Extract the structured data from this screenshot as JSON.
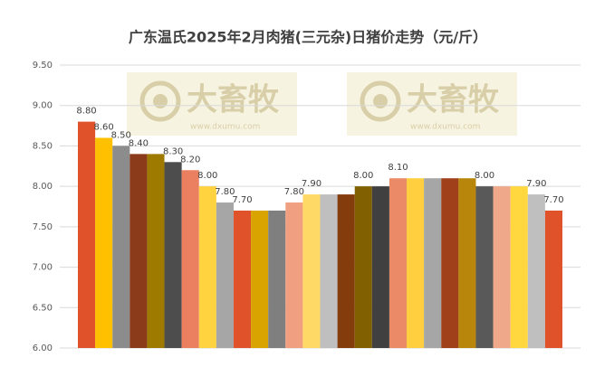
{
  "chart_data": {
    "type": "bar",
    "title": "广东温氏2025年2月肉猪(三元杂)日猪价走势（元/斤）",
    "values": [
      8.8,
      8.6,
      8.5,
      8.4,
      8.4,
      8.3,
      8.2,
      8.0,
      7.8,
      7.7,
      7.7,
      7.7,
      7.8,
      7.9,
      7.9,
      7.9,
      8.0,
      8.0,
      8.1,
      8.1,
      8.1,
      8.1,
      8.1,
      8.0,
      8.0,
      8.0,
      7.9,
      7.7
    ],
    "value_labels": [
      "8.80",
      "8.60",
      "8.50",
      "8.40",
      null,
      "8.30",
      "8.20",
      "8.00",
      "7.80",
      "7.70",
      null,
      null,
      "7.80",
      "7.90",
      null,
      null,
      "8.00",
      null,
      "8.10",
      null,
      null,
      null,
      null,
      "8.00",
      null,
      null,
      "7.90",
      "7.70"
    ],
    "colors": [
      "#E0522A",
      "#FFC000",
      "#8C8C8C",
      "#8B3A1A",
      "#9E7A00",
      "#4D4D4D",
      "#EB8060",
      "#FFD23F",
      "#A6A6A6",
      "#E0522A",
      "#D9A400",
      "#7F7F7F",
      "#F0A080",
      "#FFD966",
      "#BFBFBF",
      "#843C0C",
      "#806000",
      "#404040",
      "#EB8A66",
      "#FFCF40",
      "#A6A6A6",
      "#A0401A",
      "#B8860B",
      "#595959",
      "#F0A88A",
      "#FFD840",
      "#BFBFBF",
      "#E0522A"
    ],
    "ylim": [
      6.0,
      9.5
    ],
    "yticks": [
      {
        "value": 6.0,
        "label": "6.00"
      },
      {
        "value": 6.5,
        "label": "6.50"
      },
      {
        "value": 7.0,
        "label": "7.00"
      },
      {
        "value": 7.5,
        "label": "7.50"
      },
      {
        "value": 8.0,
        "label": "8.00"
      },
      {
        "value": 8.5,
        "label": "8.50"
      },
      {
        "value": 9.0,
        "label": "9.00"
      },
      {
        "value": 9.5,
        "label": "9.50"
      }
    ],
    "grid": true,
    "watermarks": [
      {
        "text": "大畜牧",
        "url": "www.dxumu.com"
      },
      {
        "text": "大畜牧",
        "url": "www.dxumu.com"
      }
    ]
  }
}
